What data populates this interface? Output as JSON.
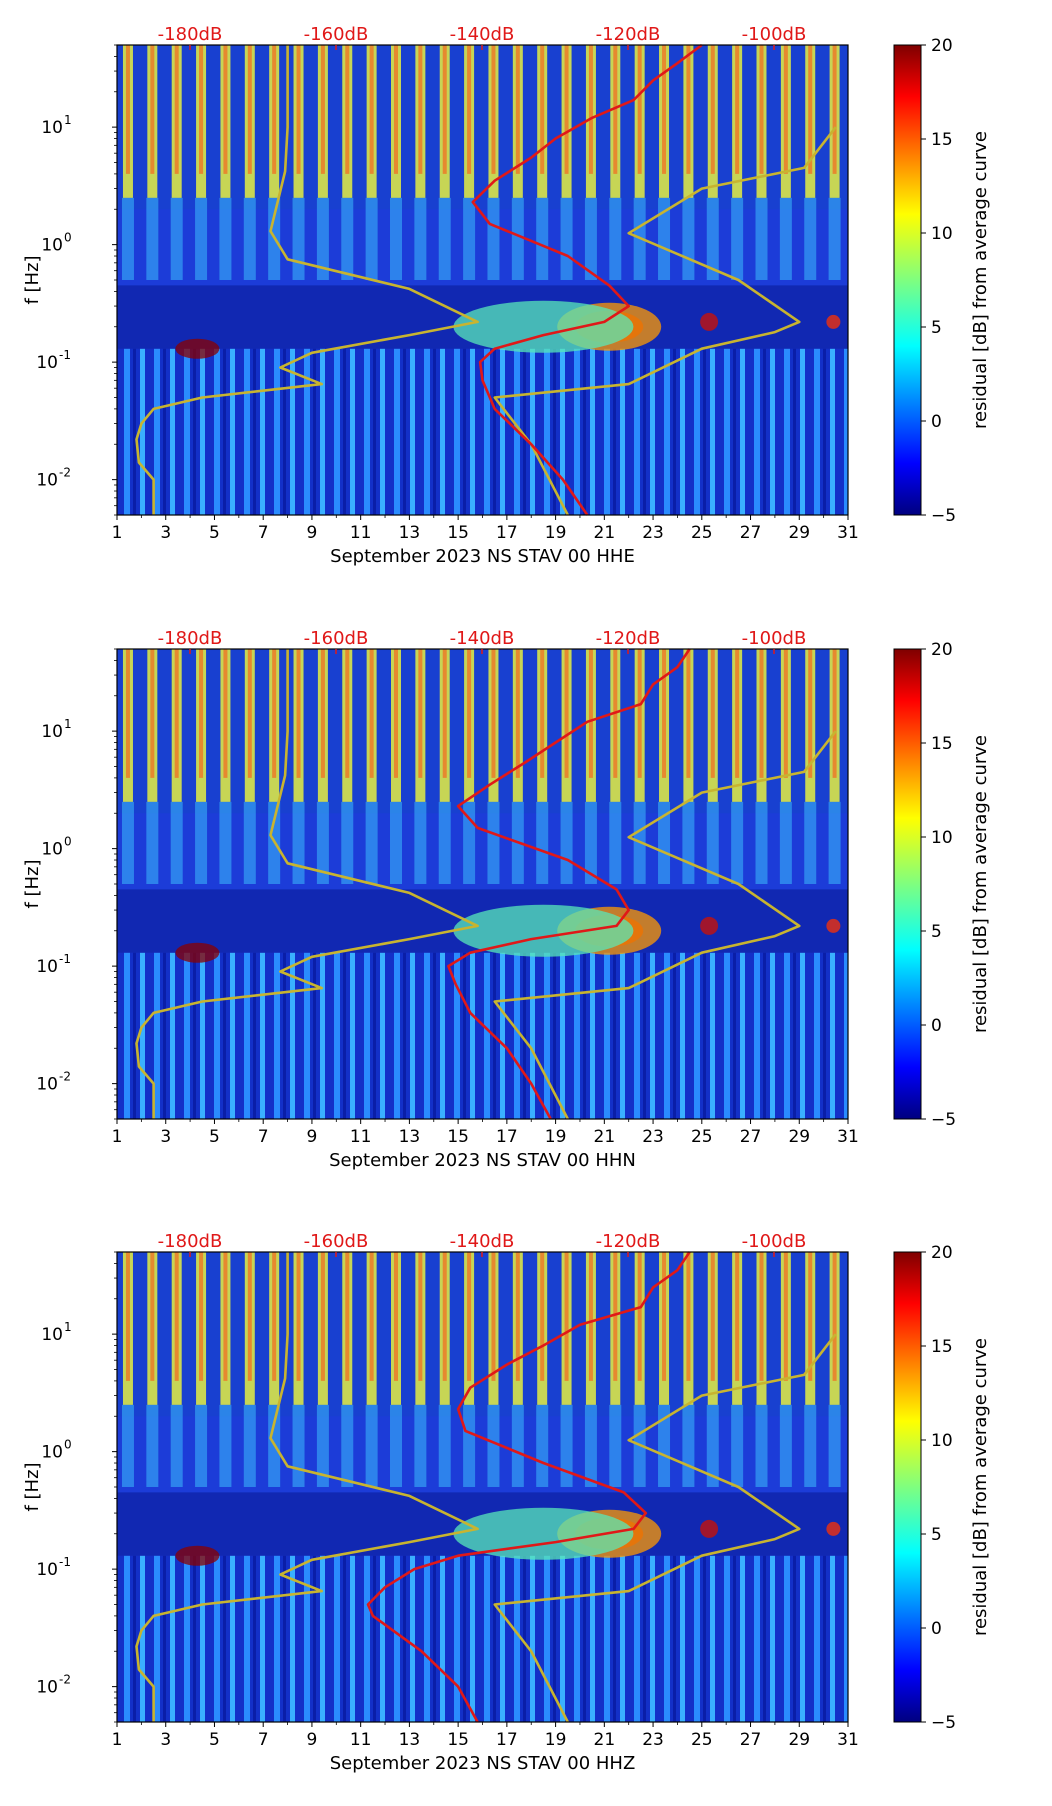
{
  "chart_data": [
    {
      "type": "heatmap",
      "title": "",
      "xlabel": "September 2023 NS STAV 00 HHE",
      "ylabel": "f [Hz]",
      "x_ticks": [
        "1",
        "3",
        "5",
        "7",
        "9",
        "11",
        "13",
        "15",
        "17",
        "19",
        "21",
        "23",
        "25",
        "27",
        "29",
        "31"
      ],
      "y_ticks": [
        {
          "label": "10",
          "exp": "-2",
          "value": 0.01
        },
        {
          "label": "10",
          "exp": "-1",
          "value": 0.1
        },
        {
          "label": "10",
          "exp": "0",
          "value": 1
        },
        {
          "label": "10",
          "exp": "1",
          "value": 10
        }
      ],
      "xlim": [
        1,
        31
      ],
      "ylim": [
        0.005,
        50
      ],
      "top_ticks": [
        "-180dB",
        "-160dB",
        "-140dB",
        "-120dB",
        "-100dB"
      ],
      "colorbar": {
        "label": "residual [dB] from average curve",
        "range": [
          -5,
          20
        ],
        "ticks": [
          "20",
          "15",
          "10",
          "5",
          "0",
          "−5"
        ]
      },
      "series": [
        {
          "name": "noise model (yellow)",
          "color": "#c8b430",
          "points": [
            [
              50,
              8.0
            ],
            [
              10,
              8.0
            ],
            [
              4.2,
              7.9
            ],
            [
              1.3,
              7.3
            ],
            [
              0.75,
              8.0
            ],
            [
              0.42,
              13.0
            ],
            [
              0.22,
              15.8
            ],
            [
              0.17,
              13.0
            ],
            [
              0.12,
              9.0
            ],
            [
              0.09,
              7.7
            ],
            [
              0.065,
              9.4
            ],
            [
              0.05,
              4.5
            ],
            [
              0.04,
              2.5
            ],
            [
              0.03,
              2.0
            ],
            [
              0.022,
              1.8
            ],
            [
              0.014,
              1.9
            ],
            [
              0.01,
              2.5
            ],
            [
              0.005,
              2.5
            ]
          ]
        },
        {
          "name": "noise model (yellow, upper)",
          "color": "#c8b430",
          "points": [
            [
              10,
              30.5
            ],
            [
              4.5,
              29.2
            ],
            [
              3.0,
              25.0
            ],
            [
              1.25,
              22.0
            ],
            [
              0.5,
              26.5
            ],
            [
              0.22,
              29.0
            ],
            [
              0.18,
              28.0
            ],
            [
              0.13,
              25.0
            ],
            [
              0.065,
              22.0
            ],
            [
              0.05,
              16.5
            ],
            [
              0.02,
              18.0
            ],
            [
              0.005,
              19.5
            ]
          ]
        },
        {
          "name": "median PSD (red)",
          "color": "#e01818",
          "points": [
            [
              50,
              25.0
            ],
            [
              35,
              24.0
            ],
            [
              25,
              23.0
            ],
            [
              17,
              22.2
            ],
            [
              12,
              20.5
            ],
            [
              8,
              19.0
            ],
            [
              5.5,
              18.0
            ],
            [
              3.5,
              16.5
            ],
            [
              2.3,
              15.6
            ],
            [
              1.5,
              16.3
            ],
            [
              0.8,
              19.5
            ],
            [
              0.45,
              21.2
            ],
            [
              0.3,
              22.0
            ],
            [
              0.22,
              21.0
            ],
            [
              0.17,
              18.5
            ],
            [
              0.13,
              16.5
            ],
            [
              0.1,
              15.9
            ],
            [
              0.07,
              16.0
            ],
            [
              0.04,
              16.5
            ],
            [
              0.02,
              18.0
            ],
            [
              0.01,
              19.3
            ],
            [
              0.005,
              20.3
            ]
          ]
        }
      ]
    },
    {
      "type": "heatmap",
      "title": "",
      "xlabel": "September 2023 NS STAV 00 HHN",
      "ylabel": "f [Hz]",
      "x_ticks": [
        "1",
        "3",
        "5",
        "7",
        "9",
        "11",
        "13",
        "15",
        "17",
        "19",
        "21",
        "23",
        "25",
        "27",
        "29",
        "31"
      ],
      "y_ticks": [
        {
          "label": "10",
          "exp": "-2",
          "value": 0.01
        },
        {
          "label": "10",
          "exp": "-1",
          "value": 0.1
        },
        {
          "label": "10",
          "exp": "0",
          "value": 1
        },
        {
          "label": "10",
          "exp": "1",
          "value": 10
        }
      ],
      "xlim": [
        1,
        31
      ],
      "ylim": [
        0.005,
        50
      ],
      "top_ticks": [
        "-180dB",
        "-160dB",
        "-140dB",
        "-120dB",
        "-100dB"
      ],
      "colorbar": {
        "label": "residual [dB] from average curve",
        "range": [
          -5,
          20
        ],
        "ticks": [
          "20",
          "15",
          "10",
          "5",
          "0",
          "−5"
        ]
      },
      "series": [
        {
          "name": "noise model (yellow)",
          "color": "#c8b430",
          "points": [
            [
              50,
              8.0
            ],
            [
              10,
              8.0
            ],
            [
              4.2,
              7.9
            ],
            [
              1.3,
              7.3
            ],
            [
              0.75,
              8.0
            ],
            [
              0.42,
              13.0
            ],
            [
              0.22,
              15.8
            ],
            [
              0.17,
              13.0
            ],
            [
              0.12,
              9.0
            ],
            [
              0.09,
              7.7
            ],
            [
              0.065,
              9.4
            ],
            [
              0.05,
              4.5
            ],
            [
              0.04,
              2.5
            ],
            [
              0.03,
              2.0
            ],
            [
              0.022,
              1.8
            ],
            [
              0.014,
              1.9
            ],
            [
              0.01,
              2.5
            ],
            [
              0.005,
              2.5
            ]
          ]
        },
        {
          "name": "noise model (yellow, upper)",
          "color": "#c8b430",
          "points": [
            [
              10,
              30.5
            ],
            [
              4.5,
              29.2
            ],
            [
              3.0,
              25.0
            ],
            [
              1.25,
              22.0
            ],
            [
              0.5,
              26.5
            ],
            [
              0.22,
              29.0
            ],
            [
              0.18,
              28.0
            ],
            [
              0.13,
              25.0
            ],
            [
              0.065,
              22.0
            ],
            [
              0.05,
              16.5
            ],
            [
              0.02,
              18.0
            ],
            [
              0.005,
              19.5
            ]
          ]
        },
        {
          "name": "median PSD (red)",
          "color": "#e01818",
          "points": [
            [
              50,
              24.5
            ],
            [
              35,
              24.0
            ],
            [
              25,
              23.0
            ],
            [
              17,
              22.5
            ],
            [
              12,
              20.3
            ],
            [
              8,
              19.0
            ],
            [
              5.5,
              17.8
            ],
            [
              3.5,
              16.3
            ],
            [
              2.3,
              15.0
            ],
            [
              1.5,
              15.8
            ],
            [
              0.8,
              19.5
            ],
            [
              0.45,
              21.5
            ],
            [
              0.3,
              22.0
            ],
            [
              0.22,
              21.5
            ],
            [
              0.17,
              18.0
            ],
            [
              0.13,
              15.5
            ],
            [
              0.1,
              14.6
            ],
            [
              0.07,
              14.9
            ],
            [
              0.04,
              15.5
            ],
            [
              0.02,
              17.0
            ],
            [
              0.01,
              18.0
            ],
            [
              0.005,
              18.8
            ]
          ]
        }
      ]
    },
    {
      "type": "heatmap",
      "title": "",
      "xlabel": "September 2023 NS STAV 00 HHZ",
      "ylabel": "f [Hz]",
      "x_ticks": [
        "1",
        "3",
        "5",
        "7",
        "9",
        "11",
        "13",
        "15",
        "17",
        "19",
        "21",
        "23",
        "25",
        "27",
        "29",
        "31"
      ],
      "y_ticks": [
        {
          "label": "10",
          "exp": "-2",
          "value": 0.01
        },
        {
          "label": "10",
          "exp": "-1",
          "value": 0.1
        },
        {
          "label": "10",
          "exp": "0",
          "value": 1
        },
        {
          "label": "10",
          "exp": "1",
          "value": 10
        }
      ],
      "xlim": [
        1,
        31
      ],
      "ylim": [
        0.005,
        50
      ],
      "top_ticks": [
        "-180dB",
        "-160dB",
        "-140dB",
        "-120dB",
        "-100dB"
      ],
      "colorbar": {
        "label": "residual [dB] from average curve",
        "range": [
          -5,
          20
        ],
        "ticks": [
          "20",
          "15",
          "10",
          "5",
          "0",
          "−5"
        ]
      },
      "series": [
        {
          "name": "noise model (yellow)",
          "color": "#c8b430",
          "points": [
            [
              50,
              8.0
            ],
            [
              10,
              8.0
            ],
            [
              4.2,
              7.9
            ],
            [
              1.3,
              7.3
            ],
            [
              0.75,
              8.0
            ],
            [
              0.42,
              13.0
            ],
            [
              0.22,
              15.8
            ],
            [
              0.17,
              13.0
            ],
            [
              0.12,
              9.0
            ],
            [
              0.09,
              7.7
            ],
            [
              0.065,
              9.4
            ],
            [
              0.05,
              4.5
            ],
            [
              0.04,
              2.5
            ],
            [
              0.03,
              2.0
            ],
            [
              0.022,
              1.8
            ],
            [
              0.014,
              1.9
            ],
            [
              0.01,
              2.5
            ],
            [
              0.005,
              2.5
            ]
          ]
        },
        {
          "name": "noise model (yellow, upper)",
          "color": "#c8b430",
          "points": [
            [
              10,
              30.5
            ],
            [
              4.5,
              29.2
            ],
            [
              3.0,
              25.0
            ],
            [
              1.25,
              22.0
            ],
            [
              0.5,
              26.5
            ],
            [
              0.22,
              29.0
            ],
            [
              0.18,
              28.0
            ],
            [
              0.13,
              25.0
            ],
            [
              0.065,
              22.0
            ],
            [
              0.05,
              16.5
            ],
            [
              0.02,
              18.0
            ],
            [
              0.005,
              19.5
            ]
          ]
        },
        {
          "name": "median PSD (red)",
          "color": "#e01818",
          "points": [
            [
              50,
              24.5
            ],
            [
              35,
              24.0
            ],
            [
              25,
              23.0
            ],
            [
              17,
              22.5
            ],
            [
              12,
              20.0
            ],
            [
              8,
              18.5
            ],
            [
              5.5,
              17.0
            ],
            [
              3.5,
              15.5
            ],
            [
              2.3,
              15.0
            ],
            [
              1.5,
              15.3
            ],
            [
              0.8,
              18.5
            ],
            [
              0.45,
              21.8
            ],
            [
              0.3,
              22.7
            ],
            [
              0.22,
              22.2
            ],
            [
              0.17,
              19.0
            ],
            [
              0.13,
              15.0
            ],
            [
              0.1,
              13.2
            ],
            [
              0.07,
              12.0
            ],
            [
              0.05,
              11.3
            ],
            [
              0.04,
              11.5
            ],
            [
              0.02,
              13.5
            ],
            [
              0.01,
              15.0
            ],
            [
              0.005,
              15.8
            ]
          ]
        }
      ]
    }
  ]
}
